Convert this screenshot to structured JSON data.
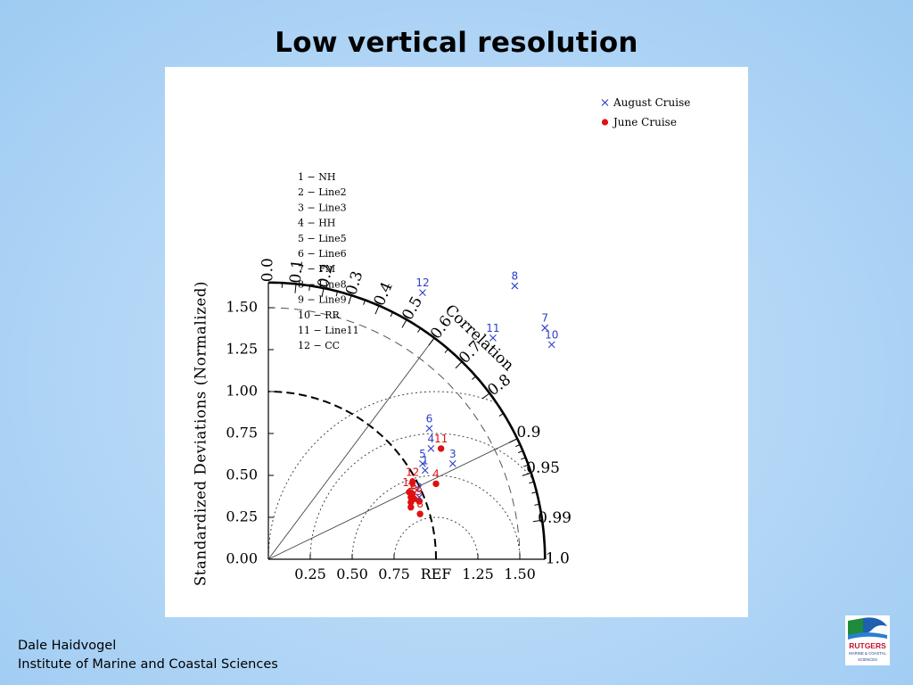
{
  "slide": {
    "title": "Low vertical resolution",
    "author": "Dale Haidvogel",
    "institute": "Institute of Marine and Coastal Sciences",
    "logo_text": [
      "RUTGERS",
      "MARINE & COASTAL",
      "SCIENCES"
    ]
  },
  "chart_data": {
    "type": "scatter",
    "subtype": "taylor-diagram",
    "ylabel": "Standardized Deviations (Normalized)",
    "arc_label": "Correlation",
    "sd_range": [
      0,
      1.65
    ],
    "sd_ticks": [
      {
        "v": 0.0,
        "label": "0.00"
      },
      {
        "v": 0.25,
        "label": "0.25"
      },
      {
        "v": 0.5,
        "label": "0.50"
      },
      {
        "v": 0.75,
        "label": "0.75"
      },
      {
        "v": 1.0,
        "label": "1.00"
      },
      {
        "v": 1.25,
        "label": "1.25"
      },
      {
        "v": 1.5,
        "label": "1.50"
      }
    ],
    "x_tick_labels": [
      {
        "v": 0.25,
        "label": "0.25"
      },
      {
        "v": 0.5,
        "label": "0.50"
      },
      {
        "v": 0.75,
        "label": "0.75"
      },
      {
        "v": 1.0,
        "label": "REF"
      },
      {
        "v": 1.25,
        "label": "1.25"
      },
      {
        "v": 1.5,
        "label": "1.50"
      }
    ],
    "correlation_ticks": [
      {
        "c": 0.0,
        "label": "0.0"
      },
      {
        "c": 0.1,
        "label": "0.1"
      },
      {
        "c": 0.2,
        "label": "0.2"
      },
      {
        "c": 0.3,
        "label": "0.3"
      },
      {
        "c": 0.4,
        "label": "0.4"
      },
      {
        "c": 0.5,
        "label": "0.5"
      },
      {
        "c": 0.6,
        "label": "0.6"
      },
      {
        "c": 0.7,
        "label": "0.7"
      },
      {
        "c": 0.8,
        "label": "0.8"
      },
      {
        "c": 0.9,
        "label": "0.9"
      },
      {
        "c": 0.95,
        "label": "0.95"
      },
      {
        "c": 0.99,
        "label": "0.99"
      },
      {
        "c": 1.0,
        "label": "1.0"
      }
    ],
    "correlation_rays": [
      0.6,
      0.9
    ],
    "rms_contours": [
      0.25,
      0.5,
      0.75,
      1.0
    ],
    "sd_dashed_arcs": [
      1.0,
      1.5
    ],
    "legend": [
      {
        "name": "August Cruise",
        "marker": "x",
        "color": "#2b3fc9"
      },
      {
        "name": "June Cruise",
        "marker": "dot",
        "color": "#e01010"
      }
    ],
    "stations": [
      "1 − NH",
      "2 − Line2",
      "3 − Line3",
      "4 − HH",
      "5 − Line5",
      "6 − Line6",
      "7 − FM",
      "8 − Line8",
      "9 − Line9",
      "10 − RR",
      "11 − Line11",
      "12 − CC"
    ],
    "series": [
      {
        "name": "August Cruise",
        "color": "#2b3fc9",
        "points": [
          {
            "label": "1",
            "x": 0.935,
            "y": 0.53
          },
          {
            "label": "2",
            "x": 0.9,
            "y": 0.37
          },
          {
            "label": "3",
            "x": 1.1,
            "y": 0.57
          },
          {
            "label": "4",
            "x": 0.97,
            "y": 0.66
          },
          {
            "label": "5",
            "x": 0.92,
            "y": 0.57
          },
          {
            "label": "6",
            "x": 0.96,
            "y": 0.78
          },
          {
            "label": "7",
            "x": 1.65,
            "y": 1.38
          },
          {
            "label": "8",
            "x": 1.47,
            "y": 1.63
          },
          {
            "label": "10",
            "x": 1.69,
            "y": 1.28
          },
          {
            "label": "11",
            "x": 1.34,
            "y": 1.32
          },
          {
            "label": "12",
            "x": 0.92,
            "y": 1.59
          }
        ]
      },
      {
        "name": "June Cruise",
        "color": "#e01010",
        "points": [
          {
            "label": "2",
            "x": 0.85,
            "y": 0.37
          },
          {
            "label": "3",
            "x": 0.87,
            "y": 0.36
          },
          {
            "label": "4",
            "x": 1.0,
            "y": 0.45
          },
          {
            "label": "5",
            "x": 0.85,
            "y": 0.34
          },
          {
            "label": "6",
            "x": 0.86,
            "y": 0.39
          },
          {
            "label": "8",
            "x": 0.905,
            "y": 0.27
          },
          {
            "label": "9",
            "x": 0.85,
            "y": 0.31
          },
          {
            "label": "9",
            "x": 0.9,
            "y": 0.345
          },
          {
            "label": "10",
            "x": 0.84,
            "y": 0.4
          },
          {
            "label": "11",
            "x": 1.03,
            "y": 0.66
          },
          {
            "label": "12",
            "x": 0.86,
            "y": 0.46
          }
        ]
      }
    ]
  }
}
